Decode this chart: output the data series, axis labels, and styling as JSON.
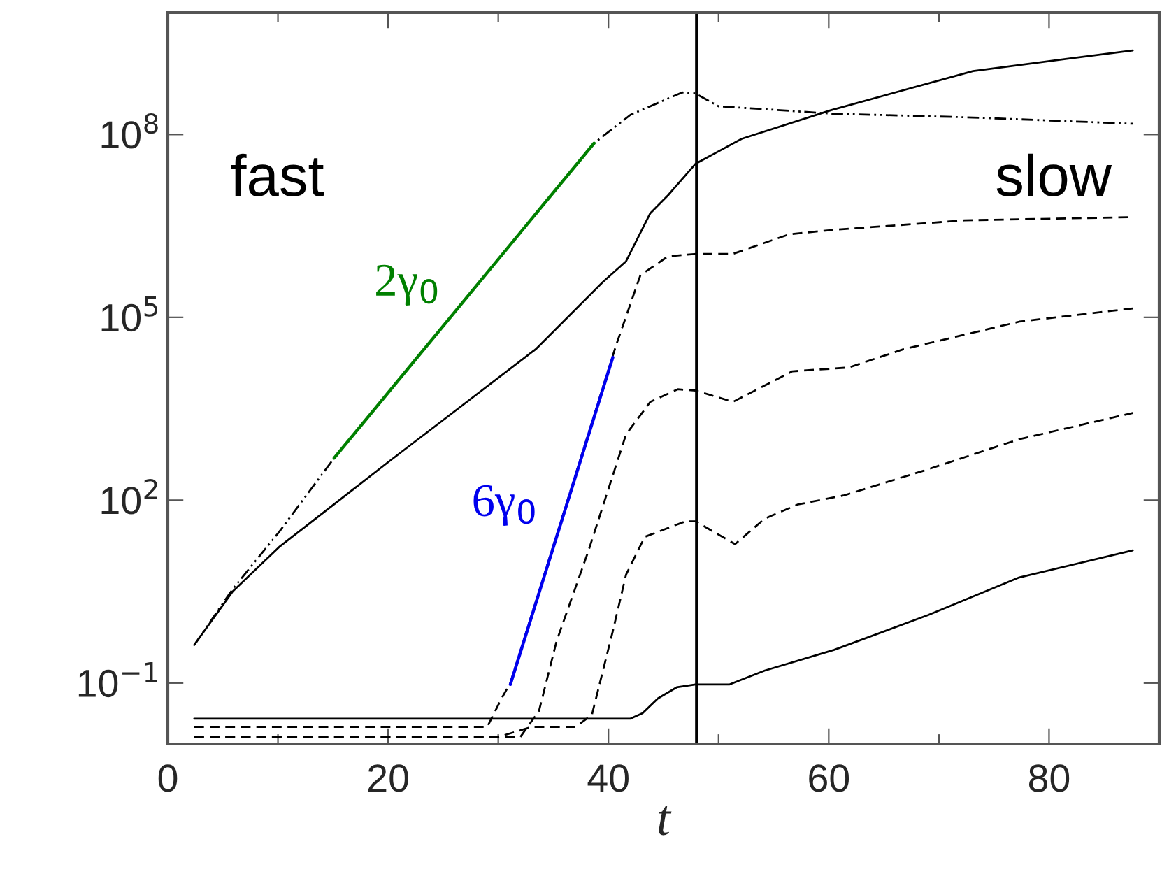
{
  "chart_data": {
    "type": "line",
    "xlabel": "t",
    "log": true,
    "grid": false,
    "xlim": [
      0,
      90
    ],
    "ylim": [
      0.01,
      10000000000.0
    ],
    "xticks": [
      0,
      {
        "value": 10,
        "label": null
      },
      20,
      {
        "value": 30,
        "label": null
      },
      40,
      {
        "value": 50,
        "label": null
      },
      60,
      {
        "value": 70,
        "label": null
      },
      80
    ],
    "yticks": [
      {
        "value": 0.1,
        "label": "10$^{−1}$"
      },
      {
        "value": 100,
        "label": "10$^{2}$"
      },
      {
        "value": 100000,
        "label": "10$^{5}$"
      },
      {
        "value": 100000000,
        "label": "10$^{8}$"
      }
    ],
    "series": [
      {
        "color": "#000000",
        "line_style": "solid",
        "x": [
          2.4,
          5.9,
          10.1,
          20,
          33.4,
          39.5,
          41.6,
          43.8,
          45.4,
          47.9,
          52.1,
          60.2,
          73.1,
          87.6
        ],
        "values": [
          0.42,
          3.2,
          17,
          420,
          30000.0,
          380000.0,
          830000.0,
          5100000.0,
          10000000.0,
          33000000.0,
          85000000.0,
          250000000.0,
          1100000000.0,
          2400000000.0
        ]
      },
      {
        "color": "#000000",
        "line_style": "dashdot",
        "x": [
          2.4,
          5.9,
          10.1,
          15.1,
          38.7,
          42,
          46.7,
          47.9,
          50,
          54.2,
          60.2,
          73.1,
          87.6
        ],
        "values": [
          0.42,
          3.5,
          30,
          490,
          72000000.0,
          210000000.0,
          490000000.0,
          470000000.0,
          290000000.0,
          260000000.0,
          220000000.0,
          190000000.0,
          150000000.0
        ]
      },
      {
        "color": "#000000",
        "line_style": "dashed",
        "x": [
          2.4,
          29,
          30.3,
          31.1,
          40.7,
          42.9,
          45.4,
          48,
          51.3,
          56.4,
          60.2,
          72.3,
          87.6
        ],
        "values": [
          0.019,
          0.019,
          0.056,
          0.1,
          35000.0,
          490000.0,
          1000000.0,
          1100000.0,
          1100000.0,
          2300000.0,
          2700000.0,
          3900000.0,
          4400000.0
        ]
      },
      {
        "color": "#000000",
        "line_style": "dashed",
        "x": [
          2.4,
          32,
          33.7,
          35.3,
          38.2,
          41.6,
          43.8,
          46.3,
          47.9,
          51.3,
          56.7,
          61.8,
          66.8,
          77.3,
          87.6
        ],
        "values": [
          0.013,
          0.013,
          0.035,
          0.49,
          15,
          1200,
          4100,
          6600,
          6300,
          4100,
          13000.0,
          15000.0,
          30000.0,
          85000.0,
          140000.0
        ]
      },
      {
        "color": "#000000",
        "line_style": "dashed",
        "x": [
          2.4,
          30,
          33,
          37,
          38.5,
          40.4,
          41.6,
          43.3,
          47,
          47.9,
          51.5,
          54.2,
          57.2,
          61.4,
          69,
          77.3,
          87.6
        ],
        "values": [
          0.013,
          0.013,
          0.019,
          0.019,
          0.03,
          0.71,
          6.0,
          25,
          45,
          45,
          19,
          50,
          85,
          120,
          320,
          1000,
          2700
        ]
      },
      {
        "color": "#000000",
        "line_style": "solid",
        "x": [
          2.4,
          42,
          43.1,
          44.5,
          46.2,
          47.9,
          51,
          54.2,
          60.5,
          69,
          77.3,
          87.6
        ],
        "values": [
          0.026,
          0.026,
          0.032,
          0.056,
          0.085,
          0.095,
          0.095,
          0.16,
          0.35,
          1.3,
          5.4,
          15
        ]
      },
      {
        "name": "2γ$_{0}$",
        "color": "#008000",
        "line_style": "solid",
        "x": [
          15.1,
          38.7
        ],
        "values": [
          490,
          72000000.0
        ]
      },
      {
        "name": "6γ$_{0}$",
        "color": "#0000ee",
        "line_style": "solid",
        "x": [
          31.1,
          40.4
        ],
        "values": [
          0.095,
          22000.0
        ]
      }
    ],
    "ref_lines": [
      {
        "axis": "x",
        "value": 48,
        "color": "#000000"
      }
    ],
    "annotations": [
      "fast",
      "slow"
    ]
  }
}
